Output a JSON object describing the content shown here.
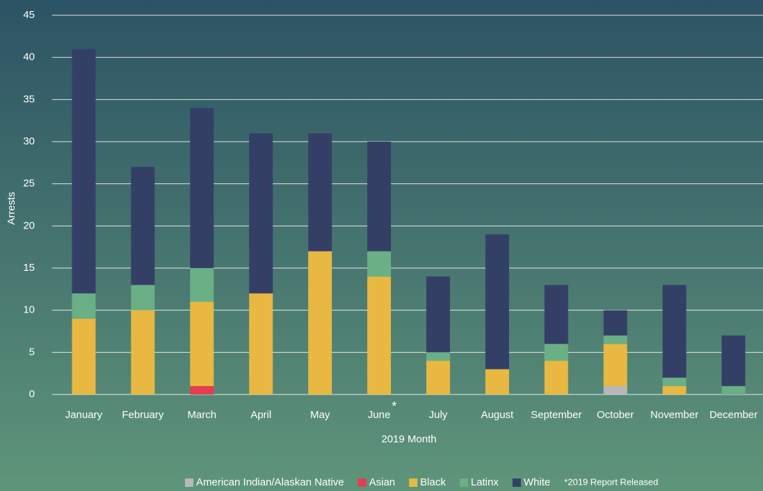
{
  "chart_data": {
    "type": "stacked_bar",
    "categories": [
      "January",
      "February",
      "March",
      "April",
      "May",
      "June",
      "July",
      "August",
      "September",
      "October",
      "November",
      "December"
    ],
    "category_annotation": {
      "category": 5,
      "text": "*"
    },
    "series": [
      {
        "name": "American Indian/Alaskan Native",
        "color": "#b8b8b8",
        "values": [
          0,
          0,
          0,
          0,
          0,
          0,
          0,
          0,
          0,
          1,
          0,
          0
        ]
      },
      {
        "name": "Asian",
        "color": "#e63c4f",
        "values": [
          0,
          0,
          1,
          0,
          0,
          0,
          0,
          0,
          0,
          0,
          0,
          0
        ]
      },
      {
        "name": "Black",
        "color": "#e8b842",
        "values": [
          9,
          10,
          10,
          12,
          17,
          14,
          4,
          3,
          4,
          5,
          1,
          0
        ]
      },
      {
        "name": "Latinx",
        "color": "#6aaf85",
        "values": [
          3,
          3,
          4,
          0,
          0,
          3,
          1,
          0,
          2,
          1,
          1,
          1
        ]
      },
      {
        "name": "White",
        "color": "#343f66",
        "values": [
          29,
          14,
          19,
          19,
          14,
          13,
          9,
          16,
          7,
          3,
          11,
          6
        ]
      }
    ],
    "note": "*2019 Report Released",
    "xlabel": "2019 Month",
    "ylabel": "Arrests",
    "ylim": [
      0,
      45
    ],
    "yticks": [
      0,
      5,
      10,
      15,
      20,
      25,
      30,
      35,
      40,
      45
    ],
    "grid": true,
    "legend": "bottom"
  }
}
